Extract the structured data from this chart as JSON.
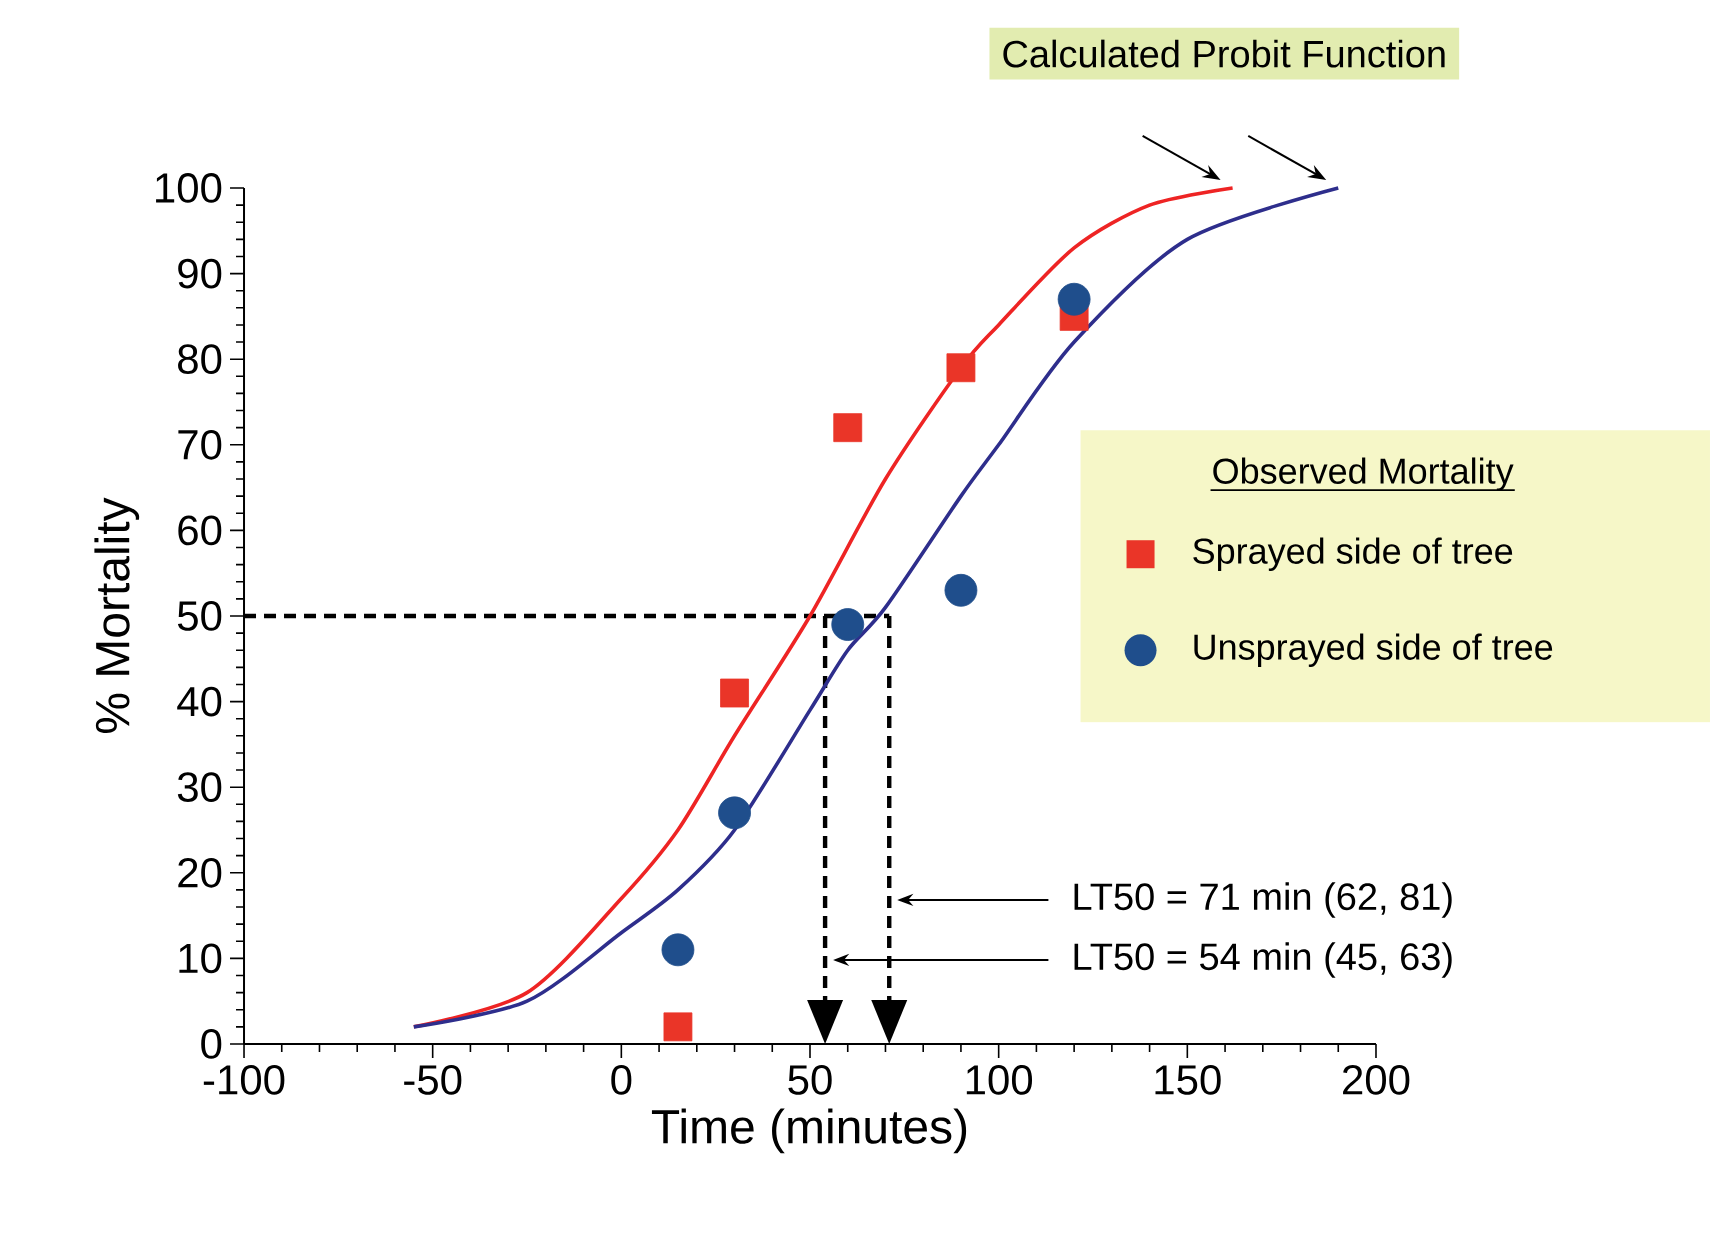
{
  "chart_data": {
    "type": "scatter",
    "xlabel": "Time (minutes)",
    "ylabel": "% Mortality",
    "xlim": [
      -100,
      200
    ],
    "ylim": [
      0,
      100
    ],
    "xticks": [
      -100,
      -50,
      0,
      50,
      100,
      150,
      200
    ],
    "yticks": [
      0,
      10,
      20,
      30,
      40,
      50,
      60,
      70,
      80,
      90,
      100
    ],
    "legend": "right",
    "legend_title": "Observed Mortality",
    "series": [
      {
        "type": "line",
        "color": "#ee2424",
        "x": [
          -55,
          -25,
          0,
          15,
          30,
          50,
          70,
          90,
          100,
          120,
          140,
          162
        ],
        "values": [
          2,
          6,
          17,
          25,
          36,
          50,
          66,
          79,
          84,
          93,
          98,
          100
        ]
      },
      {
        "type": "line",
        "color": "#2e2e8c",
        "x": [
          -55,
          -25,
          0,
          15,
          30,
          50,
          60,
          70,
          90,
          100,
          120,
          150,
          190
        ],
        "values": [
          2,
          5,
          13,
          18,
          25,
          39,
          46,
          51,
          64,
          70,
          82,
          94,
          100
        ]
      },
      {
        "name": "Sprayed side of tree",
        "color": "#ea3528",
        "marker": "square",
        "x": [
          15,
          30,
          60,
          90,
          120
        ],
        "values": [
          2,
          41,
          72,
          79,
          85
        ]
      },
      {
        "name": "Unsprayed side of tree",
        "color": "#1f4e8c",
        "marker": "circle",
        "x": [
          15,
          30,
          60,
          90,
          120
        ],
        "values": [
          11,
          27,
          49,
          53,
          87
        ]
      }
    ],
    "ref_lines": [
      {
        "axis": "y",
        "value": 50,
        "line_style": "dashed"
      },
      {
        "axis": "x",
        "value": 71,
        "line_style": "dashed",
        "label": "LT50 = 71  min (62, 81)"
      },
      {
        "axis": "x",
        "value": 54,
        "line_style": "dashed",
        "label": "LT50 = 54 min (45, 63)"
      }
    ],
    "annotations": [
      "Calculated Probit Function"
    ]
  }
}
